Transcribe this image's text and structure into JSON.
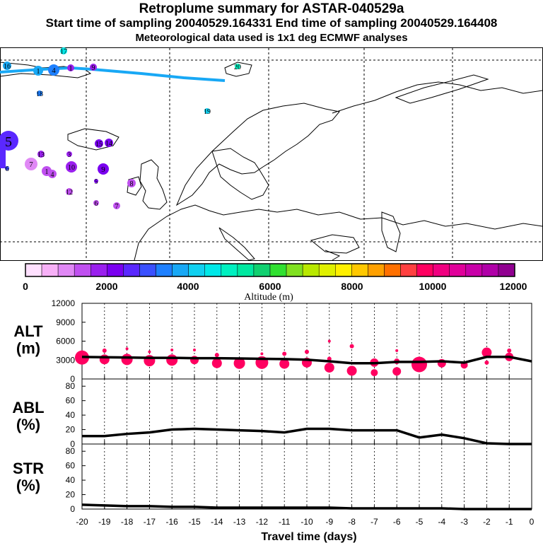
{
  "header": {
    "title": "Retroplume summary for ASTAR-040529a",
    "sampling": "Start time of sampling 20040529.164331     End time of sampling 20040529.164408",
    "met": "Meteorological data used is 1x1 deg ECMWF analyses"
  },
  "colorbar": {
    "colors": [
      "#ffe0ff",
      "#f7b0f7",
      "#e088f5",
      "#c050f0",
      "#9a20ee",
      "#7a00f0",
      "#5a28ff",
      "#3a50ff",
      "#1e80ff",
      "#18a8f5",
      "#10d0f0",
      "#00e8e8",
      "#00f0c0",
      "#00e8a0",
      "#10d070",
      "#30e030",
      "#80e020",
      "#b8e800",
      "#e0f000",
      "#fff000",
      "#ffc800",
      "#ffa000",
      "#ff7000",
      "#ff4040",
      "#ff0060",
      "#f00080",
      "#e0009a",
      "#c800a8",
      "#b000a8",
      "#900090"
    ],
    "ticks": [
      "0",
      "2000",
      "4000",
      "6000",
      "8000",
      "10000",
      "12000"
    ],
    "label": "Altitude (m)"
  },
  "map_points": [
    {
      "label": "17",
      "c": "#00e8e8"
    },
    {
      "label": "16",
      "c": "#18a8f5"
    },
    {
      "label": "1",
      "c": "#18a8f5"
    },
    {
      "label": "4",
      "c": "#1e80ff"
    },
    {
      "label": "1",
      "c": "#9a20ee"
    },
    {
      "label": "9",
      "c": "#9a20ee"
    },
    {
      "label": "20",
      "c": "#00f0c0"
    },
    {
      "label": "18",
      "c": "#1e80ff"
    },
    {
      "label": "19",
      "c": "#10d0f0"
    },
    {
      "label": "5",
      "c": "#5a28ff"
    },
    {
      "label": "15",
      "c": "#7a00f0"
    },
    {
      "label": "14",
      "c": "#7a00f0"
    },
    {
      "label": "13",
      "c": "#9a20ee"
    },
    {
      "label": "3",
      "c": "#9a20ee"
    },
    {
      "label": "7",
      "c": "#e088f5"
    },
    {
      "label": "1",
      "c": "#c050f0"
    },
    {
      "label": "4",
      "c": "#c050f0"
    },
    {
      "label": "10",
      "c": "#9a20ee"
    },
    {
      "label": "9",
      "c": "#7a00f0"
    },
    {
      "label": "5",
      "c": "#7a00f0"
    },
    {
      "label": "8",
      "c": "#c050f0"
    },
    {
      "label": "12",
      "c": "#c050f0"
    },
    {
      "label": "6",
      "c": "#c050f0"
    },
    {
      "label": "7",
      "c": "#c050f0"
    },
    {
      "label": "6",
      "c": "#3a50ff"
    }
  ],
  "chart_data": [
    {
      "type": "line",
      "panel": "ALT",
      "ylabel": "ALT\n(m)",
      "ylim": [
        0,
        12000
      ],
      "yticks": [
        "12000",
        "9000",
        "6000",
        "3000",
        "0"
      ],
      "x": [
        -20,
        -19,
        -18,
        -17,
        -16,
        -15,
        -14,
        -13,
        -12,
        -11,
        -10,
        -9,
        -8,
        -7,
        -6,
        -5,
        -4,
        -3,
        -2,
        -1,
        0
      ],
      "values": [
        3500,
        3450,
        3400,
        3350,
        3350,
        3300,
        3300,
        3250,
        3200,
        3150,
        3050,
        2800,
        2500,
        2500,
        2700,
        2700,
        2800,
        2600,
        3500,
        3500,
        2800
      ],
      "bubbles": [
        {
          "x": -20,
          "y": 3400,
          "s": 10
        },
        {
          "x": -19,
          "y": 3100,
          "s": 7
        },
        {
          "x": -19,
          "y": 4500,
          "s": 3
        },
        {
          "x": -18,
          "y": 3100,
          "s": 8
        },
        {
          "x": -18,
          "y": 4800,
          "s": 2
        },
        {
          "x": -17,
          "y": 2900,
          "s": 8
        },
        {
          "x": -17,
          "y": 4300,
          "s": 2
        },
        {
          "x": -16,
          "y": 3000,
          "s": 8
        },
        {
          "x": -16,
          "y": 4600,
          "s": 2
        },
        {
          "x": -15,
          "y": 3000,
          "s": 6
        },
        {
          "x": -15,
          "y": 4600,
          "s": 2
        },
        {
          "x": -14,
          "y": 2500,
          "s": 7
        },
        {
          "x": -14,
          "y": 3800,
          "s": 3
        },
        {
          "x": -13,
          "y": 2500,
          "s": 8
        },
        {
          "x": -12,
          "y": 2600,
          "s": 9
        },
        {
          "x": -12,
          "y": 4000,
          "s": 2
        },
        {
          "x": -11,
          "y": 2400,
          "s": 7
        },
        {
          "x": -11,
          "y": 4000,
          "s": 3
        },
        {
          "x": -10,
          "y": 2600,
          "s": 7
        },
        {
          "x": -10,
          "y": 4300,
          "s": 3
        },
        {
          "x": -9,
          "y": 1800,
          "s": 7
        },
        {
          "x": -9,
          "y": 3200,
          "s": 3
        },
        {
          "x": -9,
          "y": 6000,
          "s": 2
        },
        {
          "x": -8,
          "y": 1300,
          "s": 7
        },
        {
          "x": -8,
          "y": 5200,
          "s": 3
        },
        {
          "x": -7,
          "y": 2600,
          "s": 6
        },
        {
          "x": -7,
          "y": 1000,
          "s": 5
        },
        {
          "x": -6,
          "y": 1200,
          "s": 6
        },
        {
          "x": -6,
          "y": 2800,
          "s": 4
        },
        {
          "x": -6,
          "y": 4500,
          "s": 2
        },
        {
          "x": -5,
          "y": 2300,
          "s": 11
        },
        {
          "x": -4,
          "y": 2500,
          "s": 6
        },
        {
          "x": -3,
          "y": 2200,
          "s": 5
        },
        {
          "x": -2,
          "y": 4200,
          "s": 7
        },
        {
          "x": -2,
          "y": 2600,
          "s": 3
        },
        {
          "x": -1,
          "y": 3500,
          "s": 6
        },
        {
          "x": -1,
          "y": 4500,
          "s": 3
        }
      ]
    },
    {
      "type": "line",
      "panel": "ABL",
      "ylabel": "ABL\n(%)",
      "ylim": [
        0,
        90
      ],
      "yticks": [
        "80",
        "60",
        "40",
        "20",
        "0"
      ],
      "x": [
        -20,
        -19,
        -18,
        -17,
        -16,
        -15,
        -14,
        -13,
        -12,
        -11,
        -10,
        -9,
        -8,
        -7,
        -6,
        -5,
        -4,
        -3,
        -2,
        -1,
        0
      ],
      "values": [
        11,
        11,
        14,
        16,
        20,
        21,
        20,
        19,
        18,
        16,
        21,
        21,
        19,
        19,
        19,
        9,
        13,
        8,
        1,
        0,
        0
      ]
    },
    {
      "type": "line",
      "panel": "STR",
      "ylabel": "STR\n(%)",
      "ylim": [
        0,
        90
      ],
      "yticks": [
        "80",
        "60",
        "40",
        "20",
        "0"
      ],
      "x": [
        -20,
        -19,
        -18,
        -17,
        -16,
        -15,
        -14,
        -13,
        -12,
        -11,
        -10,
        -9,
        -8,
        -7,
        -6,
        -5,
        -4,
        -3,
        -2,
        -1,
        0
      ],
      "values": [
        6,
        5,
        4,
        4,
        3,
        3,
        2,
        2,
        2,
        2,
        2,
        2,
        1,
        1,
        1,
        1,
        1,
        0,
        0,
        0,
        0
      ],
      "xlabel": "Travel time (days)",
      "xticks": [
        "-20",
        "-19",
        "-18",
        "-17",
        "-16",
        "-15",
        "-14",
        "-13",
        "-12",
        "-11",
        "-10",
        "-9",
        "-8",
        "-7",
        "-6",
        "-5",
        "-4",
        "-3",
        "-2",
        "-1",
        "0"
      ]
    }
  ]
}
